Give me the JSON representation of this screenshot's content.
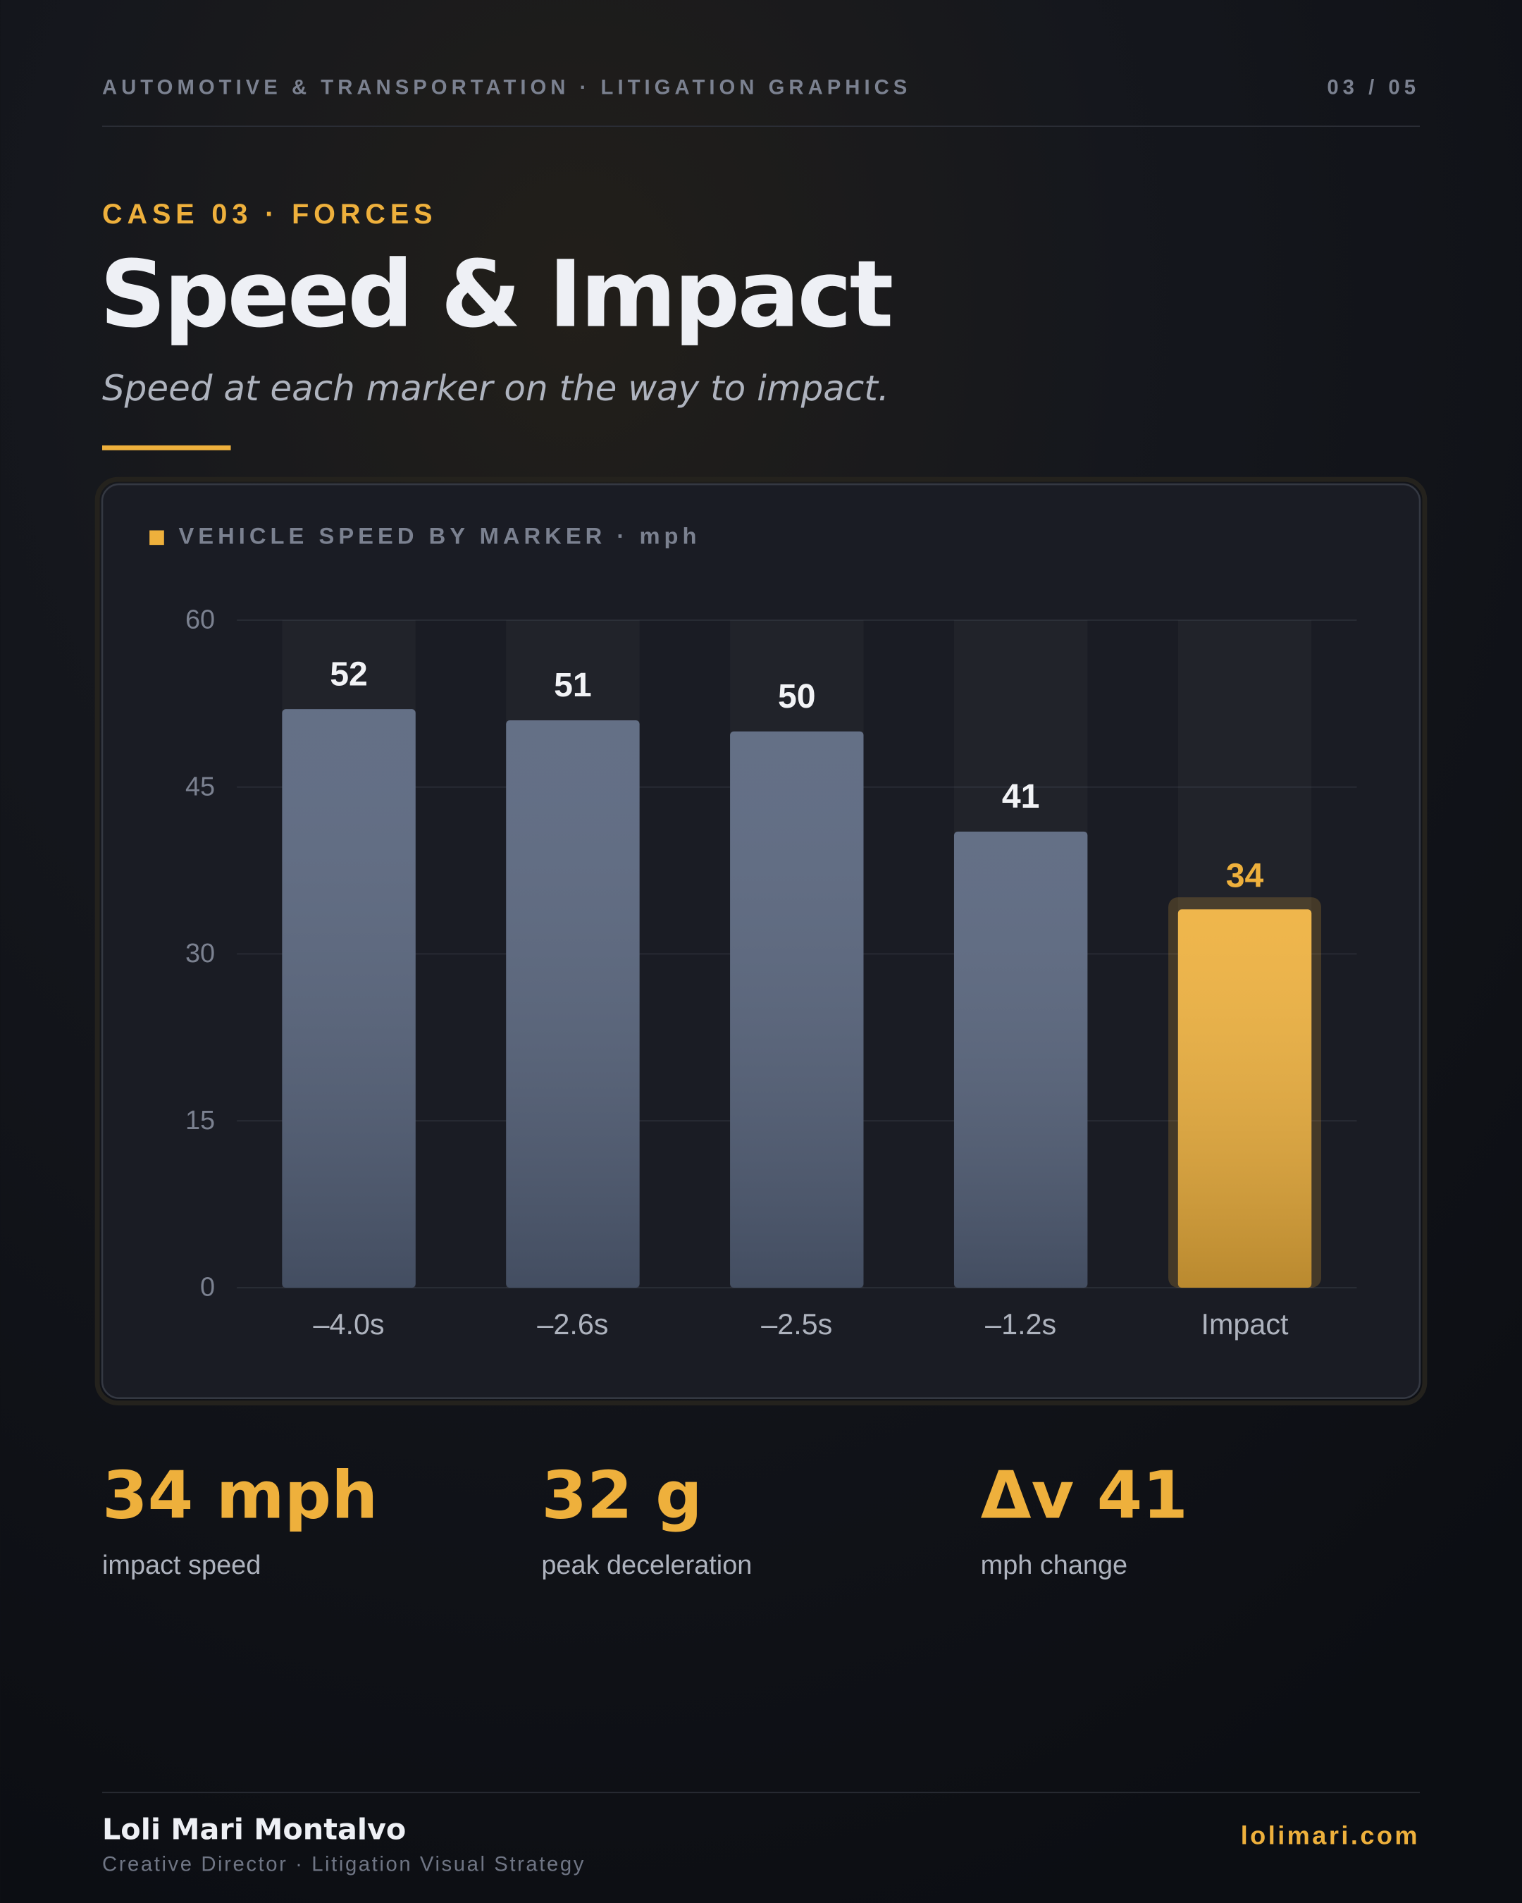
{
  "header": {
    "kicker": "AUTOMOTIVE & TRANSPORTATION · LITIGATION GRAPHICS",
    "page": "03 / 05"
  },
  "eyebrow": "CASE 03 · FORCES",
  "title": "Speed & Impact",
  "subtitle": "Speed at each marker on the way to impact.",
  "chart_data": {
    "type": "bar",
    "title": "VEHICLE SPEED BY MARKER · mph",
    "categories": [
      "–4.0s",
      "–2.6s",
      "–2.5s",
      "–1.2s",
      "Impact"
    ],
    "values": [
      52,
      51,
      50,
      41,
      34
    ],
    "color": "#56637c",
    "highlight_index": 4,
    "highlight_color": "#eeb03c",
    "ylim": [
      0,
      60
    ],
    "yticks": [
      0,
      15,
      30,
      45,
      60
    ],
    "grid": true
  },
  "stats": [
    {
      "value": "34 mph",
      "label": "impact speed"
    },
    {
      "value": "32 g",
      "label": "peak deceleration"
    },
    {
      "value": "Δv 41",
      "label": "mph change"
    }
  ],
  "footer": {
    "name": "Loli Mari Montalvo",
    "role": "Creative Director · Litigation Visual Strategy",
    "site": "lolimari.com"
  }
}
